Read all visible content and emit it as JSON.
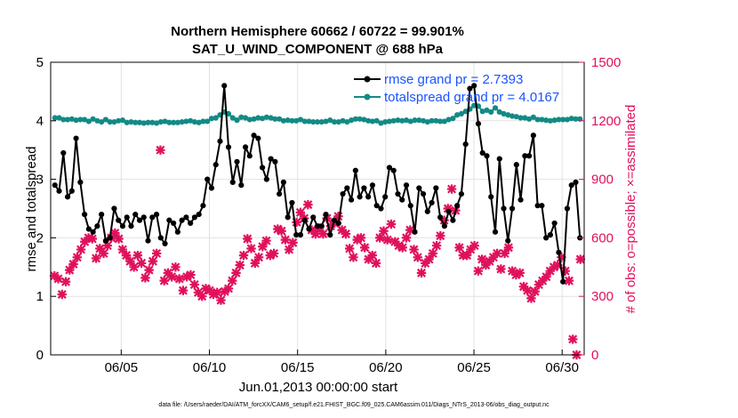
{
  "chart_data": {
    "type": "line",
    "title_line1": "Northern Hemisphere 60662 / 60722 = 99.901%",
    "title_line2": "SAT_U_WIND_COMPONENT @ 688 hPa",
    "xlabel": "Jun.01,2013 00:00:00 start",
    "ylabel": "rmse and totalspread",
    "ylabel_right": "# of obs: o=possible; ×=assimilated",
    "footer": "data file: /Users/raeder/DAI/ATM_forcXX/CAM6_setup/f.e21.FHIST_BGC.f09_025.CAM6assim.011/Diags_NTrS_2013-06/obs_diag_output.nc",
    "xlim": [
      1.0,
      31.25
    ],
    "ylim": [
      0,
      5
    ],
    "ylim_right": [
      0,
      1500
    ],
    "x_tick_values": [
      5,
      10,
      15,
      20,
      25,
      30
    ],
    "x_tick_labels": [
      "06/05",
      "06/10",
      "06/15",
      "06/20",
      "06/25",
      "06/30"
    ],
    "y_ticks": [
      "0",
      "1",
      "2",
      "3",
      "4",
      "5"
    ],
    "y_ticks_right": [
      "0",
      "300",
      "600",
      "900",
      "1200",
      "1500"
    ],
    "grid": true,
    "legend_position": "top-right",
    "colors": {
      "rmse": "#000000",
      "spread": "#138a85",
      "obs": "#e0105c",
      "legend_text": "#1a53ff"
    },
    "series": [
      {
        "name": "rmse grand pr = 2.7393",
        "values": [
          2.9,
          2.8,
          3.45,
          2.7,
          2.8,
          3.7,
          2.95,
          2.4,
          2.15,
          2.1,
          2.2,
          2.4,
          1.95,
          2.0,
          2.5,
          2.3,
          2.2,
          2.35,
          2.2,
          2.4,
          2.3,
          2.35,
          1.95,
          2.35,
          2.4,
          2.0,
          1.9,
          2.3,
          2.25,
          2.1,
          2.3,
          2.35,
          2.25,
          2.35,
          2.4,
          2.55,
          3.0,
          2.85,
          3.25,
          3.65,
          4.6,
          3.55,
          2.95,
          3.3,
          2.9,
          3.55,
          3.4,
          3.75,
          3.7,
          3.2,
          3.0,
          3.35,
          3.3,
          2.75,
          2.95,
          2.35,
          2.6,
          2.05,
          2.05,
          2.3,
          2.15,
          2.35,
          2.2,
          2.2,
          2.4,
          2.05,
          2.3,
          2.25,
          2.75,
          2.85,
          2.65,
          3.15,
          2.7,
          2.85,
          2.7,
          2.9,
          2.55,
          2.5,
          2.7,
          3.2,
          3.15,
          2.75,
          2.65,
          2.9,
          2.55,
          2.1,
          2.85,
          2.75,
          2.45,
          2.6,
          2.85,
          2.35,
          2.2,
          2.45,
          2.3,
          2.55,
          2.75,
          3.6,
          4.55,
          4.6,
          3.95,
          3.45,
          3.4,
          2.7,
          2.1,
          3.35,
          2.5,
          1.95,
          2.5,
          3.25,
          2.65,
          3.4,
          3.4,
          3.75,
          2.55,
          2.55,
          2.0,
          2.05,
          2.25,
          1.75,
          1.25,
          2.5,
          2.9,
          2.95,
          2.0
        ],
        "markers": "circle"
      },
      {
        "name": "totalspread grand pr = 4.0167",
        "values": [
          4.05,
          4.05,
          4.02,
          4.02,
          4.03,
          4.01,
          4.02,
          4.02,
          3.99,
          4.03,
          4.0,
          3.98,
          4.02,
          3.98,
          3.98,
          4.0,
          4.01,
          3.97,
          3.98,
          3.97,
          3.97,
          3.96,
          3.97,
          3.97,
          3.96,
          3.98,
          3.99,
          3.97,
          3.97,
          3.97,
          3.98,
          3.99,
          4.0,
          3.98,
          3.97,
          3.99,
          3.99,
          4.04,
          4.05,
          4.1,
          4.15,
          4.12,
          4.05,
          4.01,
          4.06,
          4.05,
          4.02,
          4.03,
          4.05,
          4.04,
          4.06,
          4.05,
          4.03,
          4.03,
          4.0,
          4.01,
          4.0,
          4.0,
          4.02,
          3.99,
          3.99,
          3.98,
          3.98,
          3.98,
          3.99,
          4.01,
          3.98,
          3.98,
          4.0,
          3.98,
          4.01,
          4.03,
          4.03,
          4.02,
          4.0,
          3.99,
          4.0,
          3.96,
          3.98,
          3.99,
          4.0,
          4.01,
          4.0,
          4.01,
          3.99,
          4.01,
          4.01,
          4.0,
          3.98,
          4.0,
          4.0,
          3.99,
          3.99,
          4.02,
          4.04,
          4.1,
          4.12,
          4.16,
          4.2,
          4.26,
          4.25,
          4.16,
          4.18,
          4.15,
          4.22,
          4.15,
          4.12,
          4.1,
          4.08,
          4.07,
          4.05,
          4.05,
          4.03,
          4.06,
          4.02,
          4.02,
          4.01,
          4.0,
          4.01,
          4.02,
          4.02,
          4.02,
          4.04,
          4.03,
          4.03
        ],
        "markers": "circle"
      },
      {
        "name": "obs assimilated (right axis)",
        "values": [
          405,
          390,
          310,
          375,
          435,
          465,
          500,
          540,
          580,
          600,
          595,
          495,
          545,
          520,
          560,
          600,
          625,
          595,
          540,
          510,
          480,
          450,
          510,
          470,
          395,
          435,
          480,
          520,
          1050,
          380,
          420,
          400,
          450,
          390,
          330,
          400,
          410,
          360,
          320,
          300,
          340,
          330,
          310,
          320,
          280,
          325,
          340,
          380,
          420,
          460,
          510,
          595,
          545,
          470,
          500,
          555,
          585,
          510,
          520,
          645,
          635,
          590,
          540,
          575,
          680,
          730,
          700,
          770,
          640,
          620,
          650,
          620,
          700,
          660,
          675,
          710,
          640,
          620,
          545,
          500,
          590,
          600,
          550,
          490,
          510,
          470,
          600,
          635,
          590,
          670,
          580,
          560,
          550,
          600,
          640,
          540,
          500,
          420,
          470,
          490,
          520,
          560,
          610,
          690,
          750,
          850,
          740,
          550,
          510,
          510,
          540,
          560,
          430,
          490,
          460,
          480,
          500,
          520,
          440,
          520,
          550,
          430,
          410,
          420,
          350,
          330,
          290,
          325,
          360,
          380,
          400,
          430,
          450,
          460,
          500,
          430,
          380,
          80,
          0,
          490
        ]
      }
    ]
  }
}
